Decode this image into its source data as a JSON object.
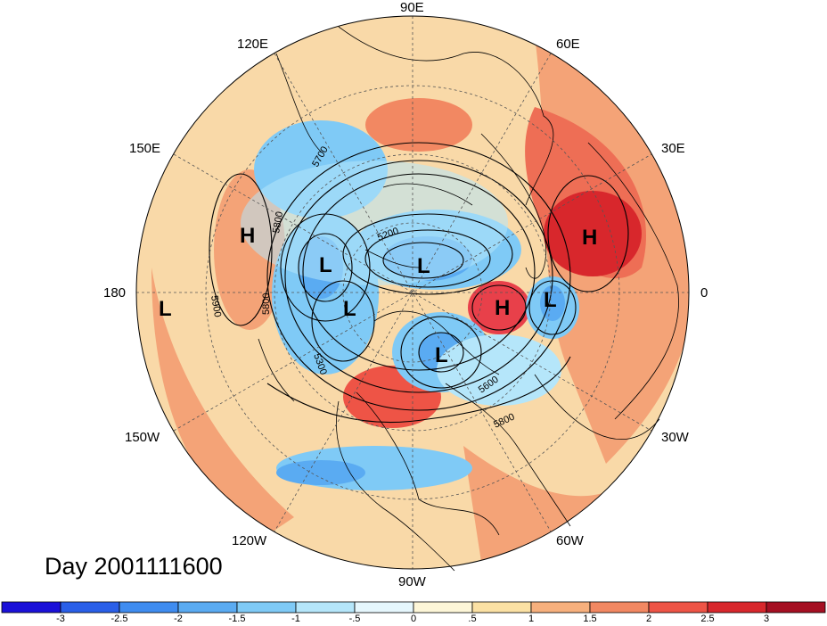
{
  "title": "Day 2001111600",
  "longitude_labels": {
    "e90": "90E",
    "e60": "60E",
    "e120": "120E",
    "e150": "150E",
    "e30": "30E",
    "w180": "180",
    "zero": "0",
    "w150": "150W",
    "w30": "30W",
    "w120": "120W",
    "w60": "60W",
    "w90": "90W"
  },
  "pressure_systems": [
    {
      "type": "H",
      "label": "H"
    },
    {
      "type": "H",
      "label": "H"
    },
    {
      "type": "H",
      "label": "H"
    },
    {
      "type": "L",
      "label": "L"
    },
    {
      "type": "L",
      "label": "L"
    },
    {
      "type": "L",
      "label": "L"
    },
    {
      "type": "L",
      "label": "L"
    },
    {
      "type": "L",
      "label": "L"
    },
    {
      "type": "L",
      "label": "L"
    }
  ],
  "contour_labels": [
    "5900",
    "5800",
    "5800",
    "5700",
    "5300",
    "5200",
    "5600",
    "5800"
  ],
  "colorbar": {
    "ticks": [
      "-3",
      "-2.5",
      "-2",
      "-1.5",
      "-1",
      "-.5",
      "0",
      ".5",
      "1",
      "1.5",
      "2",
      "2.5",
      "3"
    ],
    "colors": [
      "#1a10d8",
      "#2a5fe8",
      "#3f8cf0",
      "#5aabf2",
      "#7fcaf6",
      "#b5e6fa",
      "#e6f7fd",
      "#fdf6d8",
      "#fbe1a4",
      "#f7b07d",
      "#f28862",
      "#ee5446",
      "#d8272c",
      "#a50f22"
    ]
  },
  "colors": {
    "land_outline": "#000000",
    "ocean_warm": "#f7c390",
    "cold_anomaly": "#6cb4ef",
    "warm_anomaly": "#e8574a"
  }
}
